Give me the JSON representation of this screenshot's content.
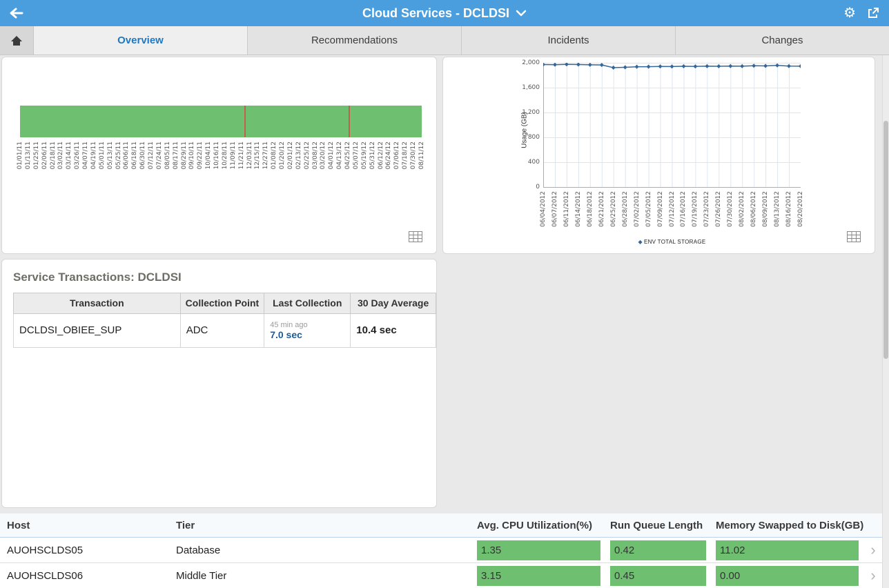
{
  "topbar": {
    "title": "Cloud Services - DCLDSI"
  },
  "tabs": [
    {
      "label": "Overview",
      "active": true
    },
    {
      "label": "Recommendations",
      "active": false
    },
    {
      "label": "Incidents",
      "active": false
    },
    {
      "label": "Changes",
      "active": false
    }
  ],
  "icons": {
    "back": "arrow-left",
    "settings": "gear",
    "share": "export-arrow",
    "home": "house",
    "title_dropdown": "chevron-down",
    "toggle_table_view": "table-grid",
    "row_nav": "chevron-right"
  },
  "service_transactions": {
    "title": "Service Transactions: DCLDSI",
    "columns": [
      "Transaction",
      "Collection Point",
      "Last Collection",
      "30 Day Average"
    ],
    "rows": [
      {
        "transaction": "DCLDSI_OBIEE_SUP",
        "collection_point": "ADC",
        "last_collection_ago": "45 min ago",
        "last_collection_value": "7.0 sec",
        "thirty_day_average": "10.4 sec"
      }
    ]
  },
  "hosts_table": {
    "columns": [
      "Host",
      "Tier",
      "Avg. CPU Utilization(%)",
      "Run Queue Length",
      "Memory Swapped to Disk(GB)"
    ],
    "rows": [
      {
        "host": "AUOHSCLDS05",
        "tier": "Database",
        "cpu": "1.35",
        "run_queue": "0.42",
        "memory_swapped": "11.02"
      },
      {
        "host": "AUOHSCLDS06",
        "tier": "Middle Tier",
        "cpu": "3.15",
        "run_queue": "0.45",
        "memory_swapped": "0.00"
      }
    ]
  },
  "chart_data": [
    {
      "id": "availability-timeline",
      "type": "bar",
      "subtype": "availability-status-timeline",
      "status": "up",
      "status_color": "#6fbf71",
      "dates": [
        "01/01/11",
        "01/13/11",
        "01/25/11",
        "02/06/11",
        "02/18/11",
        "03/02/11",
        "03/14/11",
        "03/26/11",
        "04/07/11",
        "04/19/11",
        "05/01/11",
        "05/13/11",
        "05/25/11",
        "06/06/11",
        "06/18/11",
        "06/30/11",
        "07/12/11",
        "07/24/11",
        "08/05/11",
        "08/17/11",
        "08/29/11",
        "09/10/11",
        "09/22/11",
        "10/04/11",
        "10/16/11",
        "10/28/11",
        "11/09/11",
        "11/21/11",
        "12/03/11",
        "12/15/11",
        "12/27/11",
        "01/08/12",
        "01/20/12",
        "02/01/12",
        "02/13/12",
        "02/25/12",
        "03/08/12",
        "03/20/12",
        "04/01/12",
        "04/13/12",
        "04/25/12",
        "05/07/12",
        "05/19/12",
        "05/31/12",
        "06/12/12",
        "06/24/12",
        "07/06/12",
        "07/18/12",
        "07/30/12",
        "08/11/12"
      ],
      "incident_markers": [
        {
          "position_fraction": 0.558
        },
        {
          "position_fraction": 0.818
        }
      ]
    },
    {
      "id": "env-total-storage",
      "type": "line",
      "ylabel": "Usage (GB)",
      "ylim": [
        0,
        2000
      ],
      "yticks": [
        0,
        400,
        800,
        1200,
        1600,
        2000
      ],
      "ytick_labels": [
        "0",
        "400",
        "800",
        "1,200",
        "1,600",
        "2,000"
      ],
      "grid": true,
      "legend_position": "bottom",
      "x": [
        "06/04/2012",
        "06/07/2012",
        "06/11/2012",
        "06/14/2012",
        "06/18/2012",
        "06/21/2012",
        "06/25/2012",
        "06/28/2012",
        "07/02/2012",
        "07/05/2012",
        "07/09/2012",
        "07/12/2012",
        "07/16/2012",
        "07/19/2012",
        "07/23/2012",
        "07/26/2012",
        "07/30/2012",
        "08/02/2012",
        "08/06/2012",
        "08/09/2012",
        "08/13/2012",
        "08/16/2012",
        "08/20/2012"
      ],
      "series": [
        {
          "name": "ENV TOTAL STORAGE",
          "values": [
            1972,
            1970,
            1975,
            1972,
            1968,
            1965,
            1922,
            1928,
            1935,
            1938,
            1942,
            1940,
            1944,
            1942,
            1946,
            1944,
            1948,
            1946,
            1952,
            1950,
            1958,
            1948,
            1945
          ]
        }
      ]
    }
  ],
  "colors": {
    "topbar_blue": "#4a9ede",
    "active_tab_blue": "#1f78c1",
    "metric_green": "#6fbf71",
    "incident_red": "#c1604f",
    "series_blue": "#33669b",
    "value_blue": "#1b5a96"
  }
}
